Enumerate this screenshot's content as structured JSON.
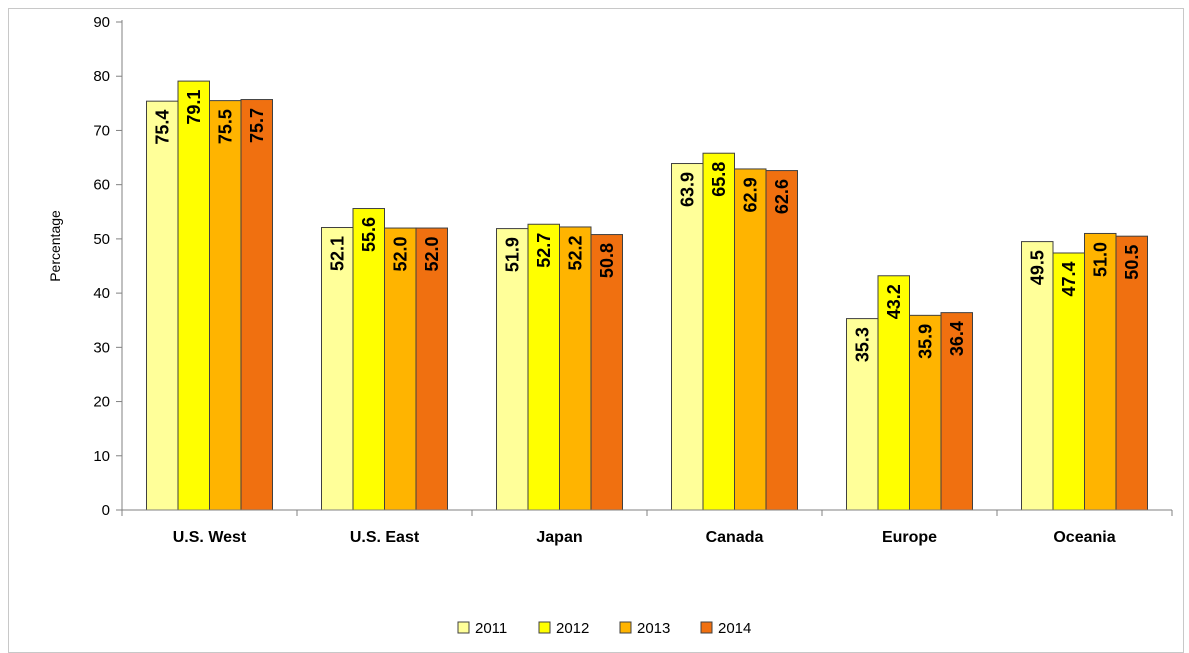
{
  "chart_data": {
    "type": "bar",
    "title": "",
    "xlabel": "",
    "ylabel": "Percentage",
    "ylim": [
      0,
      90
    ],
    "yticks": [
      0,
      10,
      20,
      30,
      40,
      50,
      60,
      70,
      80,
      90
    ],
    "grid": false,
    "legend_position": "bottom",
    "categories": [
      "U.S. West",
      "U.S. East",
      "Japan",
      "Canada",
      "Europe",
      "Oceania"
    ],
    "series": [
      {
        "name": "2011",
        "color": "#ffff99",
        "values": [
          75.4,
          52.1,
          51.9,
          63.9,
          35.3,
          49.5
        ],
        "labels": [
          "75.4",
          "52.1",
          "51.9",
          "63.9",
          "35.3",
          "49.5"
        ]
      },
      {
        "name": "2012",
        "color": "#ffff00",
        "values": [
          79.1,
          55.6,
          52.7,
          65.8,
          43.2,
          47.4
        ],
        "labels": [
          "79.1",
          "55.6",
          "52.7",
          "65.8",
          "43.2",
          "47.4"
        ]
      },
      {
        "name": "2013",
        "color": "#ffb400",
        "values": [
          75.5,
          52.0,
          52.2,
          62.9,
          35.9,
          51.0
        ],
        "labels": [
          "75.5",
          "52.0",
          "52.2",
          "62.9",
          "35.9",
          "51.0"
        ]
      },
      {
        "name": "2014",
        "color": "#f07010",
        "values": [
          75.7,
          52.0,
          50.8,
          62.6,
          36.4,
          50.5
        ],
        "labels": [
          "75.7",
          "52.0",
          "50.8",
          "62.6",
          "36.4",
          "50.5"
        ]
      }
    ]
  }
}
